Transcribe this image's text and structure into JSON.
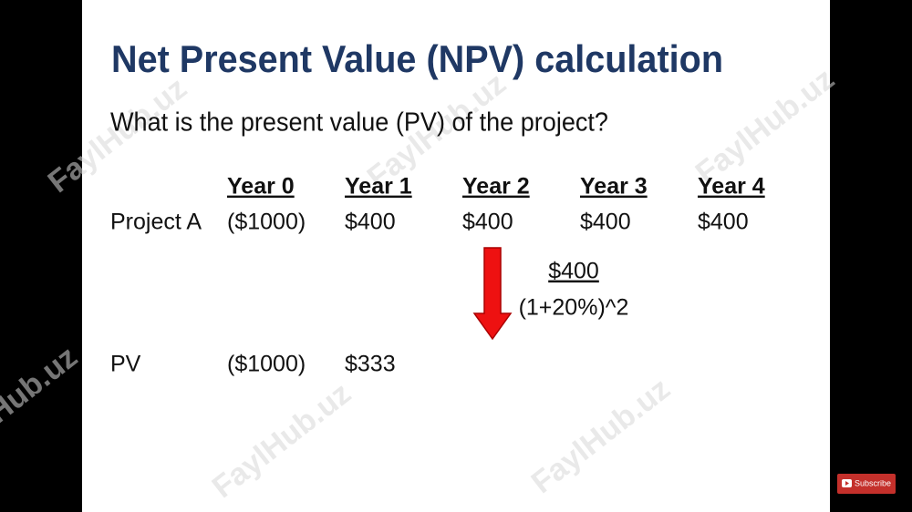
{
  "title": "Net Present Value (NPV) calculation",
  "question": "What is the present value (PV) of the project?",
  "table": {
    "header": [
      "Year 0",
      "Year 1",
      "Year 2",
      "Year 3",
      "Year 4"
    ],
    "rows": [
      {
        "label": "Project A",
        "cells": [
          "($1000)",
          "$400",
          "$400",
          "$400",
          "$400"
        ]
      }
    ]
  },
  "formula": {
    "numerator": "$400",
    "denominator": "(1+20%)^2"
  },
  "pv_row": {
    "label": "PV",
    "cells": [
      "($1000)",
      "$333"
    ]
  },
  "watermark": "FaylHub.uz",
  "subscribe": "Subscribe"
}
